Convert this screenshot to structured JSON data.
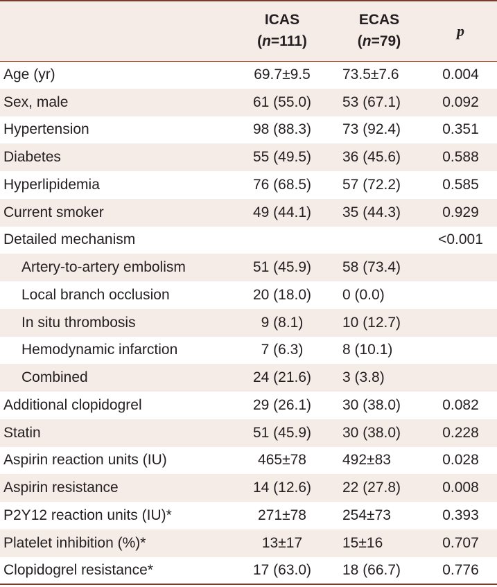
{
  "header": {
    "col1_title": "ICAS",
    "col1_n_letter": "n",
    "col1_n_value": "=111",
    "col2_title": "ECAS",
    "col2_n_letter": "n",
    "col2_n_value": "=79",
    "col3_title": "p"
  },
  "rows": [
    {
      "label": "Age (yr)",
      "icas": "69.7±9.5",
      "ecas": "73.5±7.6",
      "p": "0.004"
    },
    {
      "label": "Sex, male",
      "icas": "61 (55.0)",
      "ecas": "53 (67.1)",
      "p": "0.092"
    },
    {
      "label": "Hypertension",
      "icas": "98 (88.3)",
      "ecas": "73 (92.4)",
      "p": "0.351"
    },
    {
      "label": "Diabetes",
      "icas": "55 (49.5)",
      "ecas": "36 (45.6)",
      "p": "0.588"
    },
    {
      "label": "Hyperlipidemia",
      "icas": "76 (68.5)",
      "ecas": "57 (72.2)",
      "p": "0.585"
    },
    {
      "label": "Current smoker",
      "icas": "49 (44.1)",
      "ecas": "35 (44.3)",
      "p": "0.929"
    },
    {
      "label": "Detailed mechanism",
      "icas": "",
      "ecas": "",
      "p": "<0.001"
    },
    {
      "label": "Artery-to-artery embolism",
      "icas": "51 (45.9)",
      "ecas": "58 (73.4)",
      "p": ""
    },
    {
      "label": "Local branch occlusion",
      "icas": "20 (18.0)",
      "ecas": "0 (0.0)",
      "p": ""
    },
    {
      "label": "In situ thrombosis",
      "icas": "9 (8.1)",
      "ecas": "10 (12.7)",
      "p": ""
    },
    {
      "label": "Hemodynamic infarction",
      "icas": "7 (6.3)",
      "ecas": "8 (10.1)",
      "p": ""
    },
    {
      "label": "Combined",
      "icas": "24 (21.6)",
      "ecas": "3 (3.8)",
      "p": ""
    },
    {
      "label": "Additional clopidogrel",
      "icas": "29 (26.1)",
      "ecas": "30 (38.0)",
      "p": "0.082"
    },
    {
      "label": "Statin",
      "icas": "51 (45.9)",
      "ecas": "30 (38.0)",
      "p": "0.228"
    },
    {
      "label": "Aspirin reaction units (IU)",
      "icas": "465±78",
      "ecas": "492±83",
      "p": "0.028"
    },
    {
      "label": "Aspirin resistance",
      "icas": "14 (12.6)",
      "ecas": "22 (27.8)",
      "p": "0.008"
    },
    {
      "label": "P2Y12 reaction units (IU)*",
      "icas": "271±78",
      "ecas": "254±73",
      "p": "0.393"
    },
    {
      "label": "Platelet inhibition (%)*",
      "icas": "13±17",
      "ecas": "15±16",
      "p": "0.707"
    },
    {
      "label": "Clopidogrel resistance*",
      "icas": "17 (63.0)",
      "ecas": "18 (66.7)",
      "p": "0.776"
    }
  ]
}
